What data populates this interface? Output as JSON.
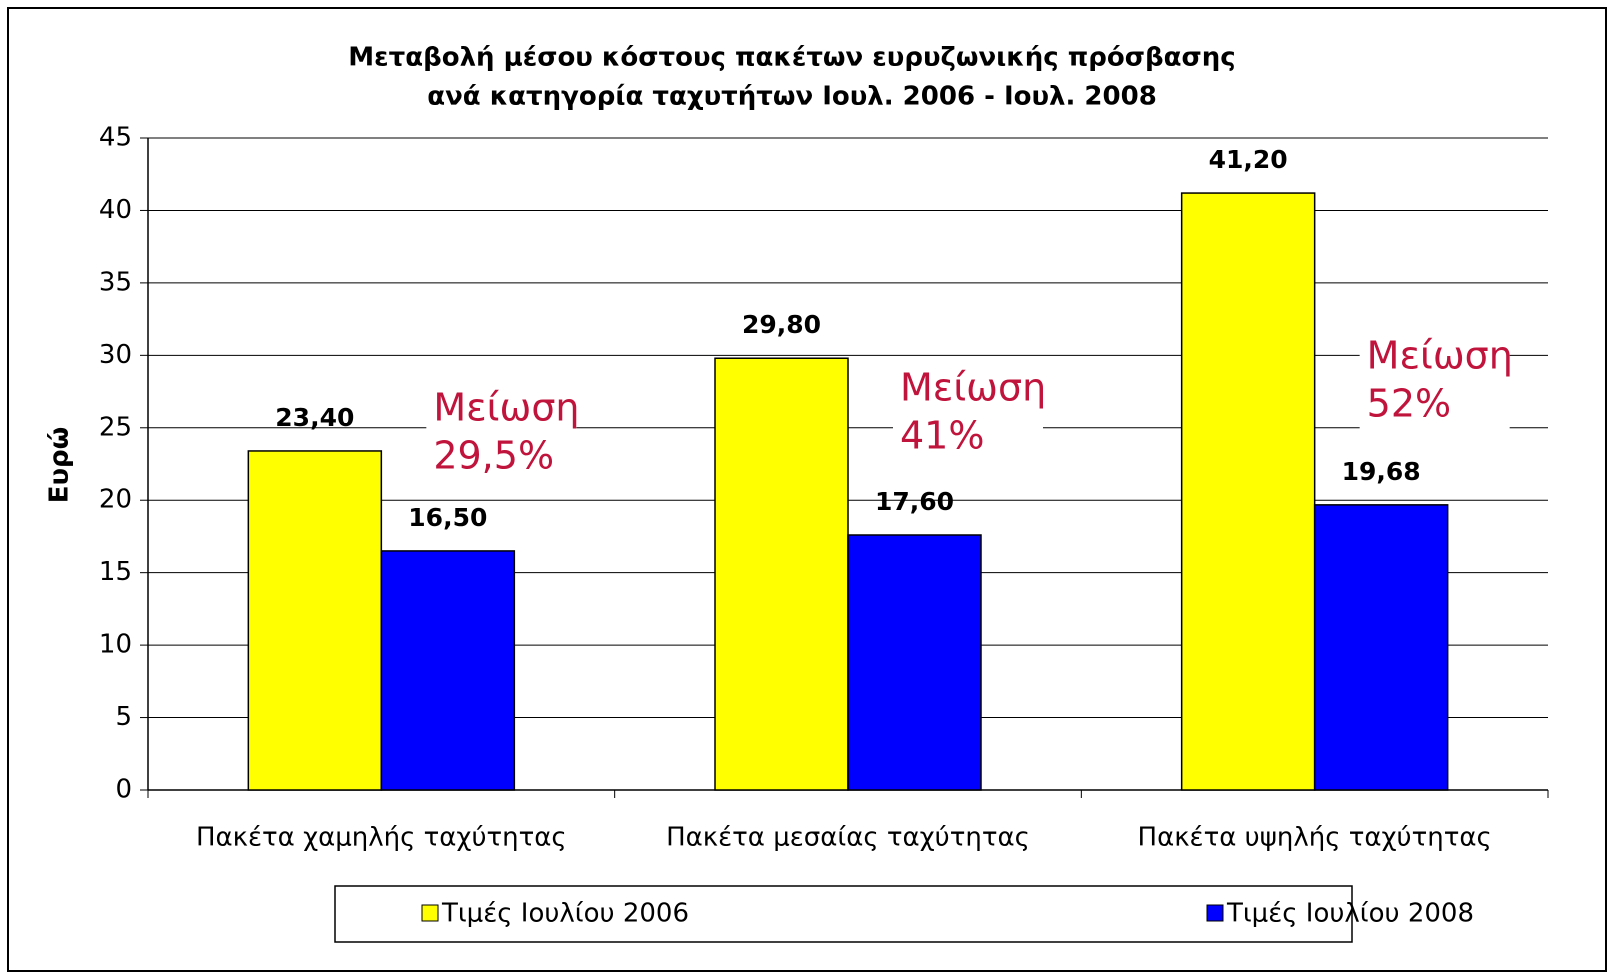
{
  "chart_data": {
    "type": "bar",
    "title": [
      "Μεταβολή μέσου κόστους πακέτων ευρυζωνικής πρόσβασης",
      "ανά κατηγορία ταχυτήτων Ιουλ. 2006 - Ιουλ. 2008"
    ],
    "y_label": "Ευρώ",
    "categories": [
      "Πακέτα χαμηλής ταχύτητας",
      "Πακέτα μεσαίας ταχύτητας",
      "Πακέτα υψηλής ταχύτητας"
    ],
    "series": [
      {
        "name": "Τιμές Ιουλίου 2006",
        "color": "#ffff00",
        "values": [
          23.4,
          29.8,
          41.2
        ],
        "value_labels": [
          "23,40",
          "29,80",
          "41,20"
        ]
      },
      {
        "name": "Τιμές Ιουλίου 2008",
        "color": "#0000ff",
        "values": [
          16.5,
          17.6,
          19.68
        ],
        "value_labels": [
          "16,50",
          "17,60",
          "19,68"
        ]
      }
    ],
    "annotations": [
      [
        "Μείωση",
        "29,5%"
      ],
      [
        "Μείωση",
        "41%"
      ],
      [
        "Μείωση",
        "52%"
      ]
    ],
    "annotation_color": "#c0143c",
    "ylim": [
      0,
      45
    ],
    "yticks": [
      0,
      5,
      10,
      15,
      20,
      25,
      30,
      35,
      40,
      45
    ],
    "grid": true,
    "legend": "bottom"
  }
}
